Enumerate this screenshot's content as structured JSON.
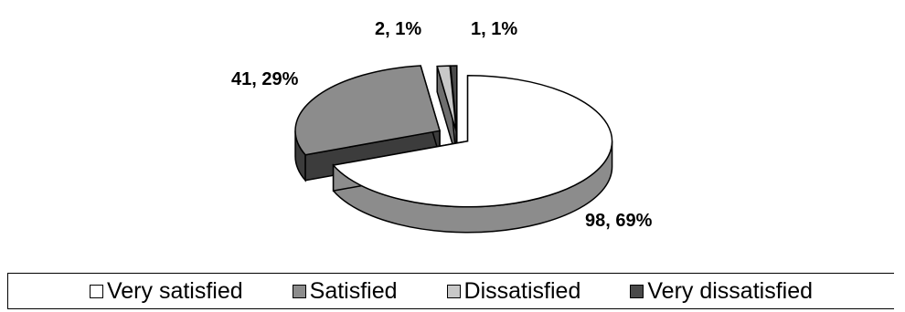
{
  "chart_data": {
    "type": "pie",
    "style": "3d-exploded",
    "title": "",
    "categories": [
      "Very satisfied",
      "Satisfied",
      "Dissatisfied",
      "Very dissatisfied"
    ],
    "values": [
      98,
      41,
      2,
      1
    ],
    "percentages": [
      "69%",
      "29%",
      "1%",
      "1%"
    ],
    "data_labels": [
      "98, 69%",
      "41, 29%",
      "2, 1%",
      "1, 1%"
    ],
    "colors": [
      "#ffffff",
      "#8c8c8c",
      "#c8c8c8",
      "#4a4a4a"
    ],
    "legend": {
      "placement": "bottom",
      "items": [
        "Very satisfied",
        "Satisfied",
        "Dissatisfied",
        "Very dissatisfied"
      ]
    }
  }
}
